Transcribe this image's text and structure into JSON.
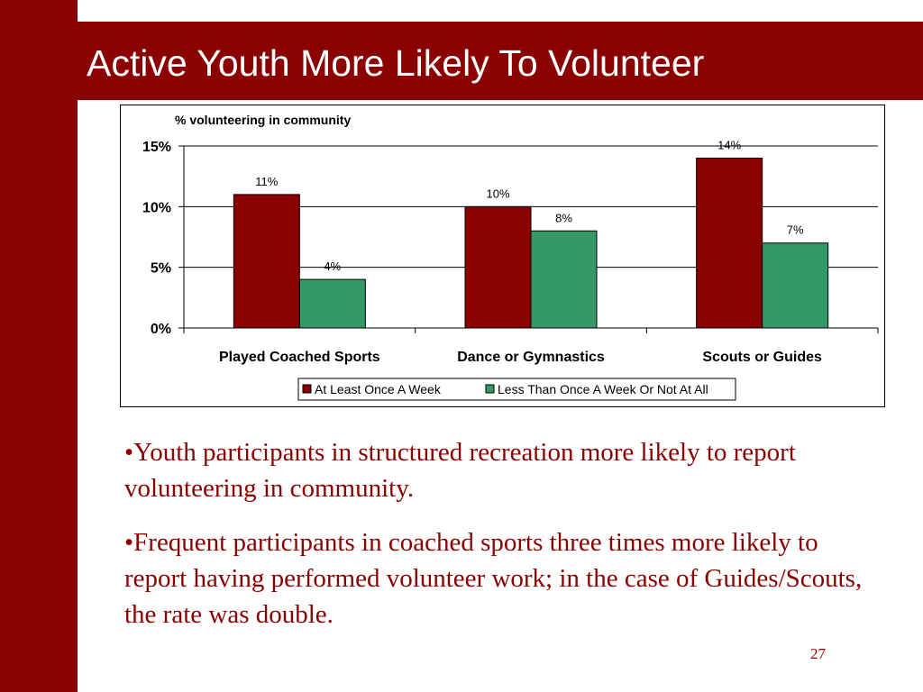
{
  "slide": {
    "title": "Active Youth More Likely To Volunteer",
    "bullets": [
      "•Youth participants in structured recreation more likely to report volunteering in community.",
      "•Frequent participants in coached sports three times more likely to report having performed volunteer work; in the case of Guides/Scouts, the rate was double."
    ],
    "page_number": "27"
  },
  "colors": {
    "brand": "#8b0000",
    "series_1": "#8b0000",
    "series_2": "#339966"
  },
  "chart_data": {
    "type": "bar",
    "title": "% volunteering in community",
    "categories": [
      "Played Coached Sports",
      "Dance or Gymnastics",
      "Scouts or Guides"
    ],
    "series": [
      {
        "name": "At Least Once A Week",
        "values": [
          11,
          10,
          14
        ],
        "labels": [
          "11%",
          "10%",
          "14%"
        ],
        "color": "#8b0000"
      },
      {
        "name": "Less Than Once A Week Or Not At All",
        "values": [
          4,
          8,
          7
        ],
        "labels": [
          "4%",
          "8%",
          "7%"
        ],
        "color": "#339966"
      }
    ],
    "ylim": [
      0,
      15
    ],
    "yticks": [
      {
        "value": 0,
        "label": "0%"
      },
      {
        "value": 5,
        "label": "5%"
      },
      {
        "value": 10,
        "label": "10%"
      },
      {
        "value": 15,
        "label": "15%"
      }
    ],
    "grid": true,
    "legend": "bottom"
  }
}
